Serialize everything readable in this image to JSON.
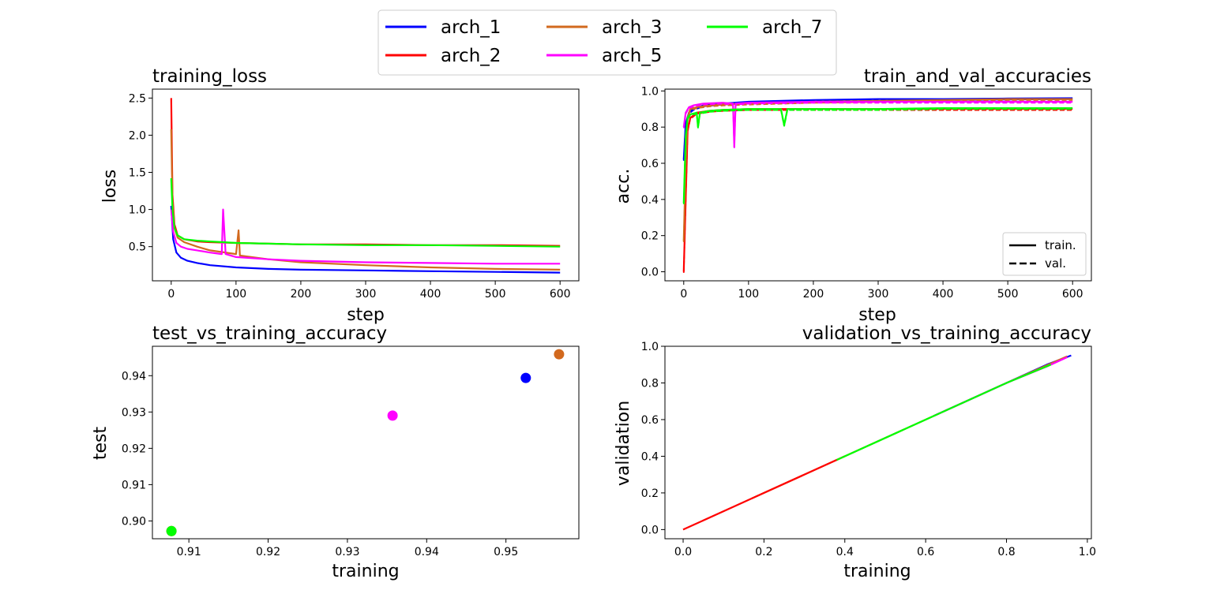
{
  "series_colors": {
    "arch_1": "#0000ff",
    "arch_2": "#ff0000",
    "arch_3": "#d2691e",
    "arch_5": "#ff00ff",
    "arch_7": "#00ff00"
  },
  "legend": {
    "entries": [
      "arch_1",
      "arch_3",
      "arch_7",
      "arch_2",
      "arch_5"
    ]
  },
  "chart_data": [
    {
      "id": "training_loss",
      "type": "line",
      "title": "training_loss",
      "xlabel": "step",
      "ylabel": "loss",
      "xlim": [
        -29,
        629
      ],
      "ylim": [
        0.04,
        2.62
      ],
      "xticks": [
        0,
        100,
        200,
        300,
        400,
        500,
        600
      ],
      "yticks": [
        0.5,
        1.0,
        1.5,
        2.0,
        2.5
      ],
      "ytick_labels": [
        "0.5",
        "1.0",
        "1.5",
        "2.0",
        "2.5"
      ],
      "series": [
        {
          "name": "arch_1",
          "x": [
            0,
            3,
            8,
            15,
            25,
            40,
            60,
            100,
            150,
            200,
            300,
            400,
            500,
            600
          ],
          "y": [
            1.05,
            0.6,
            0.42,
            0.35,
            0.31,
            0.28,
            0.25,
            0.22,
            0.2,
            0.19,
            0.18,
            0.17,
            0.16,
            0.15
          ]
        },
        {
          "name": "arch_2",
          "x": [
            0,
            2,
            5,
            10,
            20,
            40,
            60,
            100,
            150,
            200,
            300,
            400,
            500,
            600
          ],
          "y": [
            2.5,
            1.2,
            0.8,
            0.65,
            0.6,
            0.57,
            0.56,
            0.55,
            0.54,
            0.53,
            0.53,
            0.52,
            0.52,
            0.51
          ]
        },
        {
          "name": "arch_3",
          "x": [
            0,
            2,
            5,
            10,
            20,
            40,
            60,
            100,
            104,
            106,
            150,
            200,
            300,
            400,
            500,
            600
          ],
          "y": [
            2.08,
            1.1,
            0.75,
            0.62,
            0.56,
            0.5,
            0.45,
            0.4,
            0.72,
            0.38,
            0.33,
            0.29,
            0.25,
            0.22,
            0.2,
            0.19
          ]
        },
        {
          "name": "arch_5",
          "x": [
            0,
            3,
            8,
            15,
            25,
            40,
            60,
            78,
            80,
            84,
            100,
            150,
            200,
            300,
            400,
            500,
            600
          ],
          "y": [
            1.0,
            0.7,
            0.55,
            0.5,
            0.47,
            0.45,
            0.42,
            0.4,
            1.0,
            0.4,
            0.36,
            0.33,
            0.31,
            0.29,
            0.28,
            0.27,
            0.27
          ]
        },
        {
          "name": "arch_7",
          "x": [
            0,
            2,
            5,
            10,
            20,
            40,
            60,
            80,
            100,
            150,
            200,
            300,
            400,
            500,
            600
          ],
          "y": [
            1.42,
            1.0,
            0.75,
            0.65,
            0.6,
            0.58,
            0.57,
            0.56,
            0.55,
            0.54,
            0.53,
            0.52,
            0.52,
            0.51,
            0.5
          ]
        }
      ]
    },
    {
      "id": "train_and_val_accuracies",
      "type": "line",
      "title": "train_and_val_accuracies",
      "xlabel": "step",
      "ylabel": "acc.",
      "xlim": [
        -29,
        629
      ],
      "ylim": [
        -0.05,
        1.01
      ],
      "xticks": [
        0,
        100,
        200,
        300,
        400,
        500,
        600
      ],
      "yticks": [
        0.0,
        0.2,
        0.4,
        0.6,
        0.8,
        1.0
      ],
      "ytick_labels": [
        "0.0",
        "0.2",
        "0.4",
        "0.6",
        "0.8",
        "1.0"
      ],
      "legend": {
        "entries": [
          "train.",
          "val."
        ],
        "placement": "lower-right"
      },
      "series": [
        {
          "name": "arch_1",
          "x": [
            0,
            3,
            8,
            15,
            30,
            60,
            100,
            200,
            300,
            400,
            500,
            600
          ],
          "y": [
            0.62,
            0.82,
            0.88,
            0.9,
            0.92,
            0.93,
            0.94,
            0.95,
            0.955,
            0.955,
            0.958,
            0.96
          ]
        },
        {
          "name": "arch_2",
          "x": [
            0,
            3,
            6,
            10,
            20,
            40,
            60,
            100,
            200,
            300,
            400,
            500,
            600
          ],
          "y": [
            0.0,
            0.4,
            0.78,
            0.85,
            0.88,
            0.89,
            0.895,
            0.9,
            0.9,
            0.9,
            0.9,
            0.9,
            0.9
          ]
        },
        {
          "name": "arch_3",
          "x": [
            0,
            3,
            6,
            10,
            20,
            40,
            60,
            100,
            200,
            300,
            400,
            500,
            600
          ],
          "y": [
            0.17,
            0.6,
            0.85,
            0.9,
            0.91,
            0.92,
            0.925,
            0.93,
            0.94,
            0.945,
            0.95,
            0.955,
            0.955
          ]
        },
        {
          "name": "arch_5",
          "x": [
            0,
            3,
            8,
            15,
            30,
            60,
            76,
            78,
            80,
            100,
            200,
            300,
            400,
            500,
            600
          ],
          "y": [
            0.8,
            0.88,
            0.91,
            0.92,
            0.93,
            0.935,
            0.93,
            0.69,
            0.93,
            0.935,
            0.94,
            0.94,
            0.94,
            0.94,
            0.94
          ]
        },
        {
          "name": "arch_7",
          "x": [
            0,
            3,
            6,
            10,
            20,
            22,
            25,
            40,
            60,
            100,
            150,
            155,
            160,
            200,
            300,
            400,
            500,
            600
          ],
          "y": [
            0.38,
            0.75,
            0.85,
            0.87,
            0.88,
            0.8,
            0.88,
            0.89,
            0.895,
            0.9,
            0.9,
            0.81,
            0.9,
            0.9,
            0.9,
            0.905,
            0.905,
            0.905
          ]
        }
      ]
    },
    {
      "id": "test_vs_training_accuracy",
      "type": "scatter",
      "title": "test_vs_training_accuracy",
      "xlabel": "training",
      "ylabel": "test",
      "xlim": [
        0.9054,
        0.9592
      ],
      "ylim": [
        0.8951,
        0.9481
      ],
      "xticks": [
        0.91,
        0.92,
        0.93,
        0.94,
        0.95
      ],
      "xtick_labels": [
        "0.91",
        "0.92",
        "0.93",
        "0.94",
        "0.95"
      ],
      "yticks": [
        0.9,
        0.91,
        0.92,
        0.93,
        0.94
      ],
      "ytick_labels": [
        "0.90",
        "0.91",
        "0.92",
        "0.93",
        "0.94"
      ],
      "points": [
        {
          "name": "arch_2",
          "x": 0.9078,
          "y": 0.8972
        },
        {
          "name": "arch_7",
          "x": 0.9078,
          "y": 0.8972
        },
        {
          "name": "arch_5",
          "x": 0.9357,
          "y": 0.929
        },
        {
          "name": "arch_1",
          "x": 0.9525,
          "y": 0.9394
        },
        {
          "name": "arch_3",
          "x": 0.9567,
          "y": 0.9459
        }
      ]
    },
    {
      "id": "validation_vs_training_accuracy",
      "type": "line",
      "title": "validation_vs_training_accuracy",
      "xlabel": "training",
      "ylabel": "validation",
      "xlim": [
        -0.045,
        1.01
      ],
      "ylim": [
        -0.05,
        1.0
      ],
      "xticks": [
        0.0,
        0.2,
        0.4,
        0.6,
        0.8,
        1.0
      ],
      "xtick_labels": [
        "0.0",
        "0.2",
        "0.4",
        "0.6",
        "0.8",
        "1.0"
      ],
      "yticks": [
        0.0,
        0.2,
        0.4,
        0.6,
        0.8,
        1.0
      ],
      "ytick_labels": [
        "0.0",
        "0.2",
        "0.4",
        "0.6",
        "0.8",
        "1.0"
      ],
      "series": [
        {
          "name": "arch_1",
          "x": [
            0.62,
            0.8,
            0.9,
            0.96
          ],
          "y": [
            0.62,
            0.8,
            0.9,
            0.95
          ]
        },
        {
          "name": "arch_3",
          "x": [
            0.17,
            0.4,
            0.6,
            0.8,
            0.95
          ],
          "y": [
            0.17,
            0.4,
            0.6,
            0.8,
            0.945
          ]
        },
        {
          "name": "arch_2",
          "x": [
            0.0,
            0.2,
            0.4
          ],
          "y": [
            0.0,
            0.2,
            0.4
          ]
        },
        {
          "name": "arch_5",
          "x": [
            0.62,
            0.8,
            0.9,
            0.95
          ],
          "y": [
            0.62,
            0.8,
            0.89,
            0.94
          ]
        },
        {
          "name": "arch_7",
          "x": [
            0.38,
            0.6,
            0.8,
            0.91
          ],
          "y": [
            0.38,
            0.6,
            0.8,
            0.9
          ]
        }
      ]
    }
  ]
}
